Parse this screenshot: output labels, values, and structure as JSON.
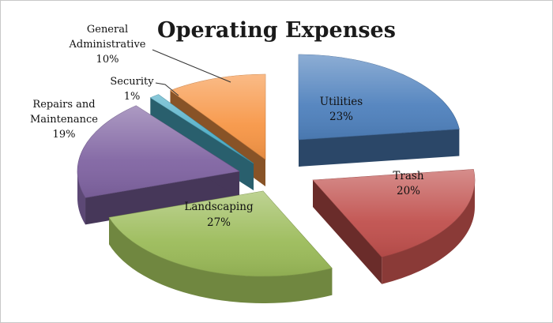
{
  "chart_data": {
    "type": "pie",
    "title": "Operating Expenses",
    "slices": [
      {
        "name": "Utilities",
        "value": 23,
        "label": "23%",
        "color": "#4f81bd"
      },
      {
        "name": "Trash",
        "value": 20,
        "label": "20%",
        "color": "#c0504d"
      },
      {
        "name": "Landscaping",
        "value": 27,
        "label": "27%",
        "color": "#9bbb59"
      },
      {
        "name": "Repairs and Maintenance",
        "value": 19,
        "label": "19%",
        "color": "#8064a2"
      },
      {
        "name": "Security",
        "value": 1,
        "label": "1%",
        "color": "#4bacc6"
      },
      {
        "name": "General Administrative",
        "value": 10,
        "label": "10%",
        "color": "#f79646"
      }
    ],
    "external_labels": {
      "general_line1": "General",
      "general_line2": "Administrative",
      "security": "Security",
      "repairs_line1": "Repairs and",
      "repairs_line2": "Maintenance"
    },
    "exploded": true,
    "style": "3d-pie"
  }
}
